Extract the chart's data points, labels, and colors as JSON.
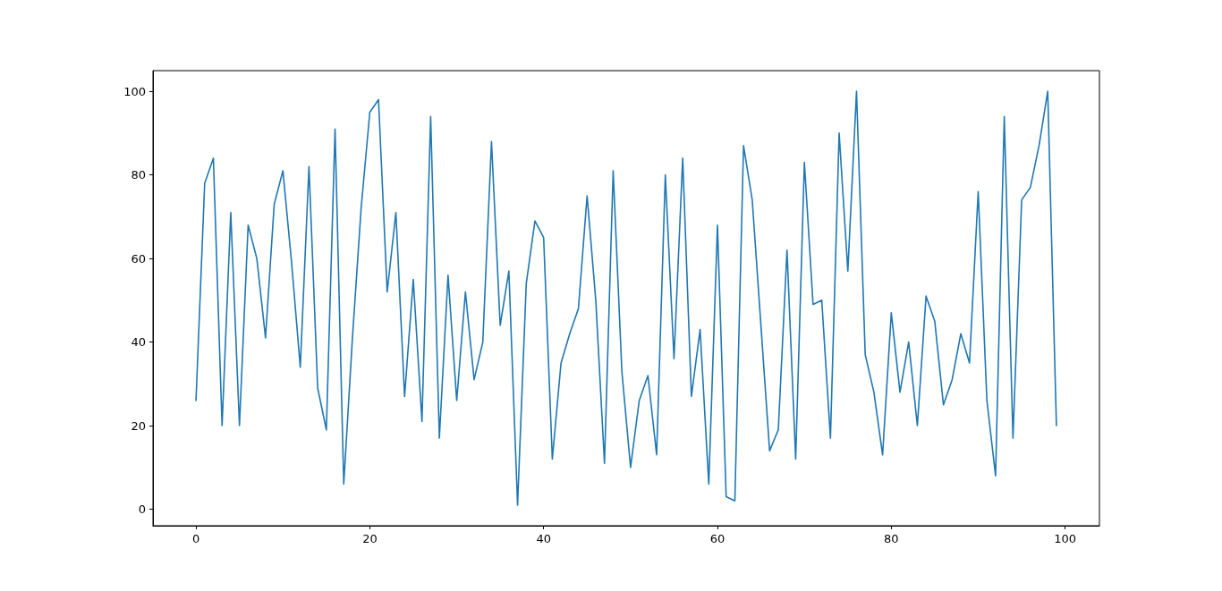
{
  "chart_data": {
    "type": "line",
    "x": [
      0,
      1,
      2,
      3,
      4,
      5,
      6,
      7,
      8,
      9,
      10,
      11,
      12,
      13,
      14,
      15,
      16,
      17,
      18,
      19,
      20,
      21,
      22,
      23,
      24,
      25,
      26,
      27,
      28,
      29,
      30,
      31,
      32,
      33,
      34,
      35,
      36,
      37,
      38,
      39,
      40,
      41,
      42,
      43,
      44,
      45,
      46,
      47,
      48,
      49,
      50,
      51,
      52,
      53,
      54,
      55,
      56,
      57,
      58,
      59,
      60,
      61,
      62,
      63,
      64,
      65,
      66,
      67,
      68,
      69,
      70,
      71,
      72,
      73,
      74,
      75,
      76,
      77,
      78,
      79,
      80,
      81,
      82,
      83,
      84,
      85,
      86,
      87,
      88,
      89,
      90,
      91,
      92,
      93,
      94,
      95,
      96,
      97,
      98,
      99
    ],
    "series": [
      {
        "color": "#1f77b4",
        "values": [
          26,
          78,
          84,
          20,
          71,
          20,
          68,
          60,
          41,
          73,
          81,
          59,
          34,
          82,
          29,
          19,
          91,
          6,
          41,
          72,
          95,
          98,
          52,
          71,
          27,
          55,
          21,
          94,
          17,
          56,
          26,
          52,
          31,
          40,
          88,
          44,
          57,
          1,
          54,
          69,
          65,
          12,
          35,
          42,
          48,
          75,
          50,
          11,
          81,
          33,
          10,
          26,
          32,
          13,
          80,
          36,
          84,
          27,
          43,
          6,
          68,
          3,
          2,
          87,
          74,
          44,
          14,
          19,
          62,
          12,
          83,
          49,
          50,
          17,
          90,
          57,
          100,
          37,
          28,
          13,
          47,
          28,
          40,
          20,
          51,
          45,
          25,
          31,
          42,
          35,
          76,
          26,
          8,
          94,
          17,
          74,
          77,
          87,
          100,
          20
        ]
      }
    ],
    "xlim": [
      -4.95,
      103.95
    ],
    "ylim": [
      -3.95,
      104.95
    ],
    "xticks": [
      0,
      20,
      40,
      60,
      80,
      100
    ],
    "yticks": [
      0,
      20,
      40,
      60,
      80,
      100
    ],
    "grid": false,
    "marker": "none",
    "line_style": "solid"
  }
}
